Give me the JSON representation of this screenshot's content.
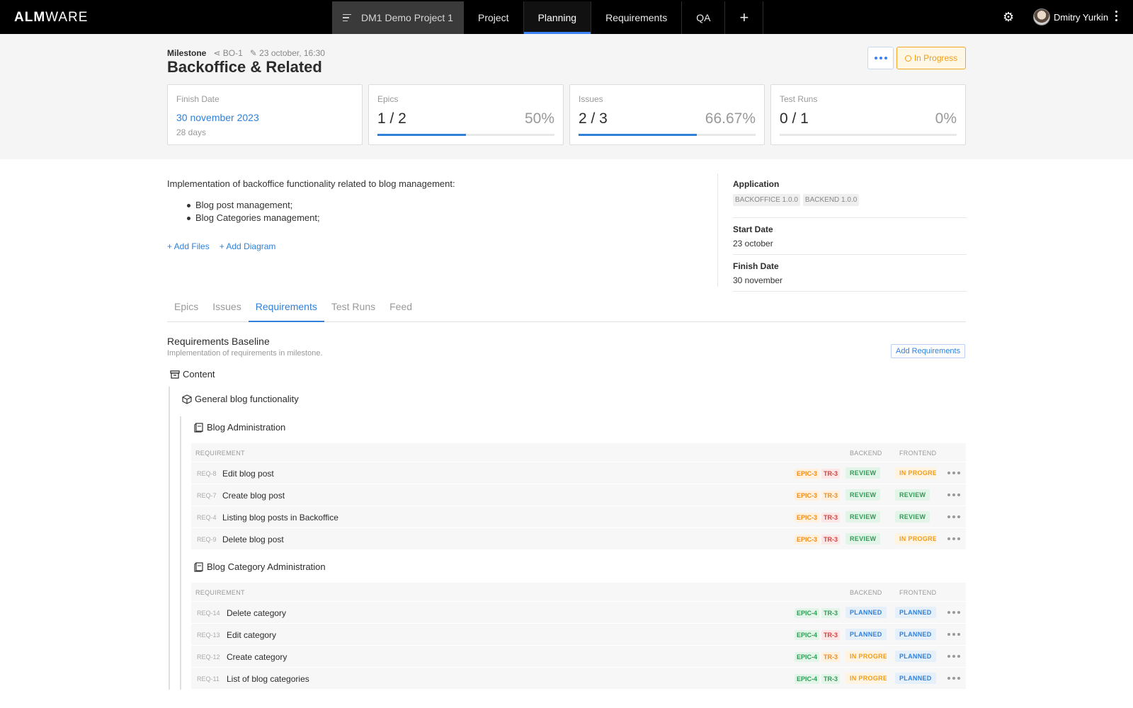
{
  "app": {
    "logo_bold": "ALM",
    "logo_light": "WARE",
    "project_name": "DM1 Demo Project 1",
    "nav": [
      "Project",
      "Planning",
      "Requirements",
      "QA"
    ],
    "nav_add": "+",
    "user_name": "Dmitry Yurkin",
    "icons": {
      "settings": "gear-icon",
      "menu": "menu-icon",
      "more": "kebab-icon"
    }
  },
  "milestone": {
    "type_label": "Milestone",
    "key": "BO-1",
    "edited": "23 october, 16:30",
    "title": "Backoffice & Related",
    "status": "In Progress"
  },
  "cards": {
    "finish": {
      "label": "Finish Date",
      "date": "30 november 2023",
      "sub": "28 days"
    },
    "epics": {
      "label": "Epics",
      "value": "1 / 2",
      "pct": "50%",
      "progress": 0.5
    },
    "issues": {
      "label": "Issues",
      "value": "2 / 3",
      "pct": "66.67%",
      "progress": 0.6667
    },
    "testruns": {
      "label": "Test Runs",
      "value": "0 / 1",
      "pct": "0%",
      "progress": 0
    }
  },
  "description": {
    "intro": "Implementation of backoffice functionality related to blog management:",
    "bullets": [
      "Blog post management;",
      "Blog Categories management;"
    ],
    "add_files": "+ Add Files",
    "add_diagram": "+ Add Diagram"
  },
  "details": {
    "application_label": "Application",
    "applications": [
      "BACKOFFICE 1.0.0",
      "BACKEND 1.0.0"
    ],
    "start_label": "Start Date",
    "start_value": "23 october",
    "finish_label": "Finish Date",
    "finish_value": "30 november"
  },
  "tabs": [
    "Epics",
    "Issues",
    "Requirements",
    "Test Runs",
    "Feed"
  ],
  "active_tab": "Requirements",
  "baseline": {
    "title": "Requirements Baseline",
    "subtitle": "Implementation of requirements in milestone.",
    "add_button": "Add Requirements",
    "root": "Content",
    "group": "General blog functionality"
  },
  "table_headers": {
    "requirement": "REQUIREMENT",
    "backend": "BACKEND",
    "frontend": "FRONTEND"
  },
  "sections": [
    {
      "title": "Blog Administration",
      "rows": [
        {
          "id": "REQ-8",
          "name": "Edit blog post",
          "epic": "EPIC-3",
          "tr": "TR-3",
          "tr_color": "red",
          "backend": "REVIEW",
          "frontend": "IN PROGRESS"
        },
        {
          "id": "REQ-7",
          "name": "Create blog post",
          "epic": "EPIC-3",
          "tr": "TR-3",
          "tr_color": "orange",
          "backend": "REVIEW",
          "frontend": "REVIEW"
        },
        {
          "id": "REQ-4",
          "name": "Listing blog posts in Backoffice",
          "epic": "EPIC-3",
          "tr": "TR-3",
          "tr_color": "red",
          "backend": "REVIEW",
          "frontend": "REVIEW"
        },
        {
          "id": "REQ-9",
          "name": "Delete blog post",
          "epic": "EPIC-3",
          "tr": "TR-3",
          "tr_color": "red",
          "backend": "REVIEW",
          "frontend": "IN PROGRESS"
        }
      ]
    },
    {
      "title": "Blog Category Administration",
      "rows": [
        {
          "id": "REQ-14",
          "name": "Delete category",
          "epic": "EPIC-4",
          "tr": "TR-3",
          "tr_color": "green",
          "backend": "PLANNED",
          "frontend": "PLANNED"
        },
        {
          "id": "REQ-13",
          "name": "Edit category",
          "epic": "EPIC-4",
          "tr": "TR-3",
          "tr_color": "red",
          "backend": "PLANNED",
          "frontend": "PLANNED"
        },
        {
          "id": "REQ-12",
          "name": "Create category",
          "epic": "EPIC-4",
          "tr": "TR-3",
          "tr_color": "orange",
          "backend": "IN PROGRESS",
          "frontend": "PLANNED"
        },
        {
          "id": "REQ-11",
          "name": "List of blog categories",
          "epic": "EPIC-4",
          "tr": "TR-3",
          "tr_color": "green",
          "backend": "IN PROGRESS",
          "frontend": "PLANNED"
        }
      ]
    }
  ],
  "colors": {
    "accent": "#2f80d9",
    "status_in_progress": "#f39c12",
    "review_bg": "#e3f4e8",
    "review_fg": "#2e9c55",
    "planned_bg": "#e6f0fb",
    "planned_fg": "#2f80d9",
    "inprog_bg": "#fff4e2",
    "inprog_fg": "#f39c12",
    "epic3_bg": "#fff1de",
    "epic3_fg": "#f08c1a",
    "epic4_bg": "#e3f4e8",
    "epic4_fg": "#2e9c55",
    "tr_red_bg": "#fde6e6",
    "tr_red_fg": "#e03b3b",
    "tr_orange_bg": "#fff1de",
    "tr_orange_fg": "#f08c1a",
    "tr_green_bg": "#e3f4e8",
    "tr_green_fg": "#2e9c55"
  }
}
